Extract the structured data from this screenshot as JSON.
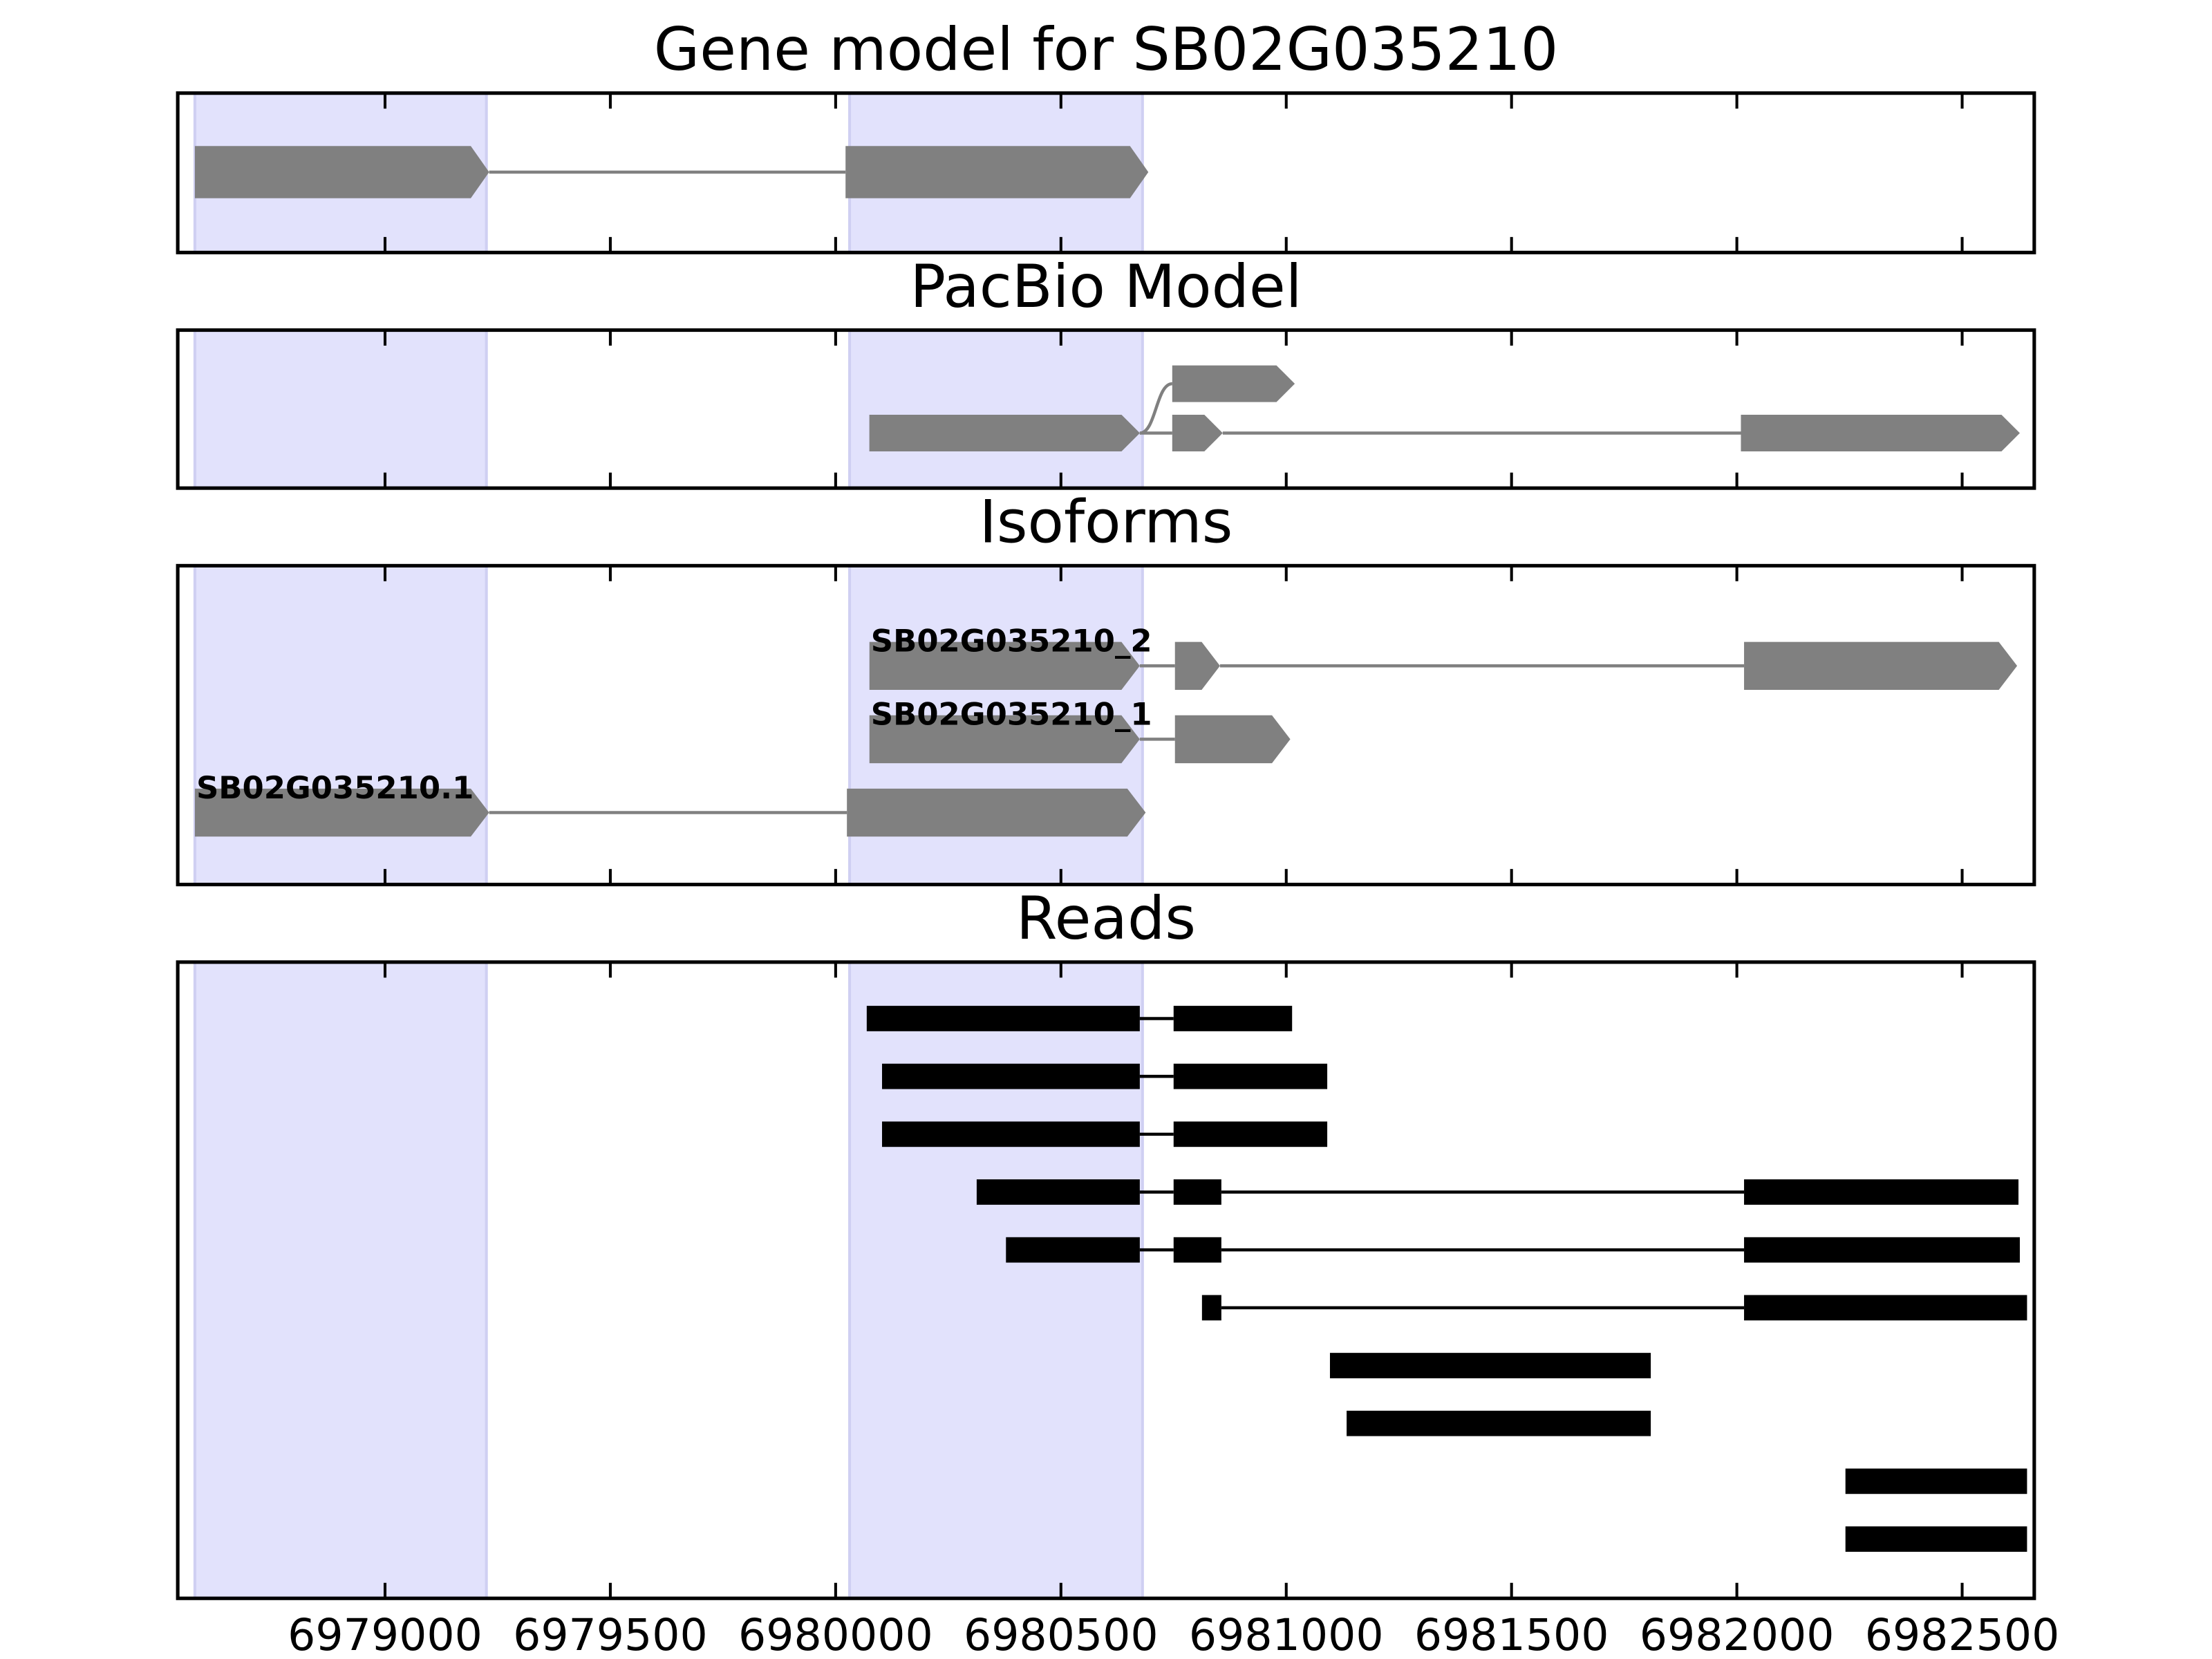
{
  "chart_data": [
    {
      "type": "gene-track",
      "title": "Gene model for SB02G035210",
      "xlim": [
        6978540,
        6982660
      ],
      "xticks": [
        6979000,
        6979500,
        6980000,
        6980500,
        6981000,
        6981500,
        6982000,
        6982500
      ],
      "highlights": [
        [
          6978578,
          6979225
        ],
        [
          6980031,
          6980681
        ]
      ],
      "color": "#808080",
      "tracks": [
        {
          "exons": [
            [
              6978578,
              6979231
            ],
            [
              6980022,
              6980694
            ]
          ]
        }
      ]
    },
    {
      "type": "gene-track",
      "title": "PacBio Model",
      "xlim": [
        6978540,
        6982660
      ],
      "xticks": [
        6979000,
        6979500,
        6980000,
        6980500,
        6981000,
        6981500,
        6982000,
        6982500
      ],
      "highlights": [
        [
          6978578,
          6979225
        ],
        [
          6980031,
          6980681
        ]
      ],
      "color": "#808080",
      "tracks": [
        {
          "exons": [
            [
              6980075,
              6980675
            ],
            [
              6980747,
              6980859
            ],
            [
              6982009,
              6982628
            ]
          ]
        },
        {
          "exons": [
            [
              6980075,
              6980675
            ],
            [
              6980747,
              6981019
            ]
          ]
        }
      ]
    },
    {
      "type": "gene-track",
      "title": "Isoforms",
      "xlim": [
        6978540,
        6982660
      ],
      "xticks": [
        6979000,
        6979500,
        6980000,
        6980500,
        6981000,
        6981500,
        6982000,
        6982500
      ],
      "highlights": [
        [
          6978578,
          6979225
        ],
        [
          6980031,
          6980681
        ]
      ],
      "color": "#808080",
      "tracks": [
        {
          "name": "SB02G035210_2",
          "exons": [
            [
              6980075,
              6980675
            ],
            [
              6980753,
              6980853
            ],
            [
              6982016,
              6982622
            ]
          ]
        },
        {
          "name": "SB02G035210_1",
          "exons": [
            [
              6980075,
              6980675
            ],
            [
              6980753,
              6981009
            ]
          ]
        },
        {
          "name": "SB02G035210.1",
          "exons": [
            [
              6978578,
              6979231
            ],
            [
              6980025,
              6980688
            ]
          ]
        }
      ]
    },
    {
      "type": "read-track",
      "title": "Reads",
      "xlim": [
        6978540,
        6982660
      ],
      "xticks": [
        6979000,
        6979500,
        6980000,
        6980500,
        6981000,
        6981500,
        6982000,
        6982500
      ],
      "highlights": [
        [
          6978578,
          6979225
        ],
        [
          6980031,
          6980681
        ]
      ],
      "color": "#000000",
      "tracks": [
        {
          "exons": [
            [
              6980069,
              6980675
            ],
            [
              6980750,
              6981013
            ]
          ]
        },
        {
          "exons": [
            [
              6980103,
              6980675
            ],
            [
              6980750,
              6981091
            ]
          ]
        },
        {
          "exons": [
            [
              6980103,
              6980675
            ],
            [
              6980750,
              6981091
            ]
          ]
        },
        {
          "exons": [
            [
              6980313,
              6980675
            ],
            [
              6980750,
              6980856
            ],
            [
              6982016,
              6982625
            ]
          ]
        },
        {
          "exons": [
            [
              6980378,
              6980675
            ],
            [
              6980750,
              6980856
            ],
            [
              6982016,
              6982628
            ]
          ]
        },
        {
          "exons": [
            [
              6980813,
              6980856
            ],
            [
              6982016,
              6982644
            ]
          ]
        },
        {
          "exons": [
            [
              6981097,
              6981809
            ]
          ]
        },
        {
          "exons": [
            [
              6981134,
              6981809
            ]
          ]
        },
        {
          "exons": [
            [
              6982241,
              6982644
            ]
          ]
        },
        {
          "exons": [
            [
              6982241,
              6982644
            ]
          ]
        }
      ]
    }
  ]
}
